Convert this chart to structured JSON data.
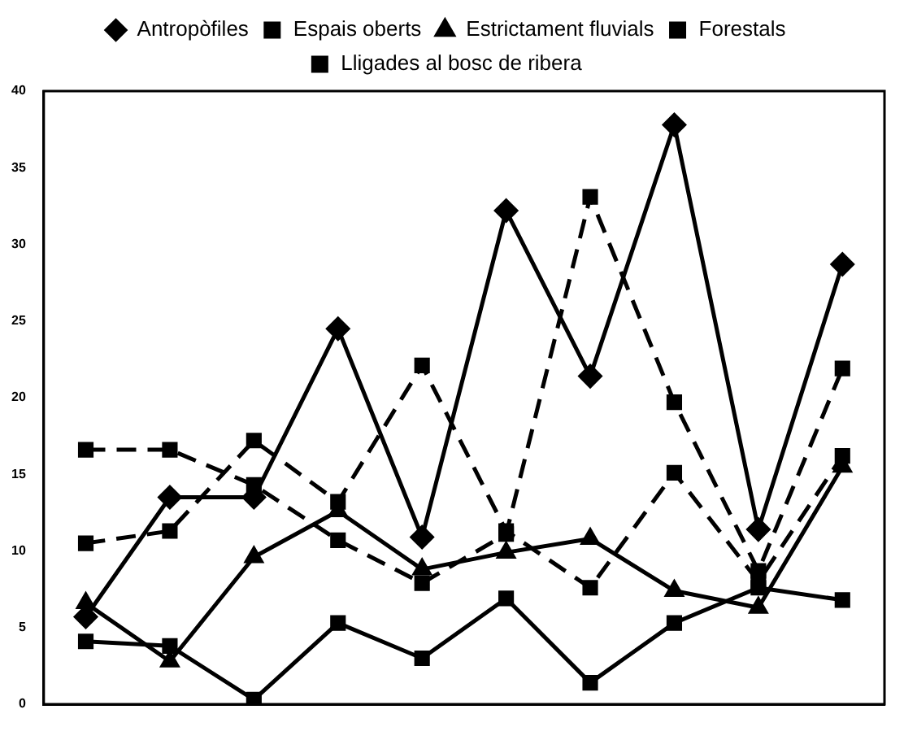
{
  "chart_data": {
    "type": "line",
    "categories": [
      null,
      null,
      null,
      null,
      null,
      null,
      null,
      null,
      null,
      null
    ],
    "series": [
      {
        "name": "Antropòfiles",
        "color": "#000000",
        "marker": "diamond",
        "line_style": "solid",
        "values": [
          5.7,
          13.5,
          13.5,
          24.5,
          10.9,
          32.2,
          21.4,
          37.8,
          11.4,
          28.7
        ]
      },
      {
        "name": "Espais oberts",
        "color": "#000000",
        "marker": "square",
        "line_style": "solid",
        "values": [
          4.1,
          3.8,
          0.3,
          5.3,
          3.0,
          6.9,
          1.4,
          5.3,
          7.6,
          6.8
        ]
      },
      {
        "name": "Estrictament fluvials",
        "color": "#000000",
        "marker": "triangle",
        "line_style": "solid",
        "values": [
          6.6,
          2.8,
          9.6,
          12.6,
          8.8,
          9.9,
          10.8,
          7.4,
          6.3,
          15.5
        ]
      },
      {
        "name": "Forestals",
        "color": "#000000",
        "marker": "square",
        "line_style": "dashed",
        "values": [
          16.6,
          16.6,
          14.3,
          10.7,
          7.9,
          11.1,
          33.1,
          19.7,
          8.7,
          21.9
        ]
      },
      {
        "name": "Lligades al bosc de ribera",
        "color": "#000000",
        "marker": "square",
        "line_style": "dashed",
        "values": [
          10.5,
          11.3,
          17.2,
          13.2,
          22.1,
          11.3,
          7.6,
          15.1,
          8.0,
          16.2
        ]
      }
    ],
    "ylim": [
      0,
      40
    ],
    "yticks": [
      0,
      5,
      10,
      15,
      20,
      25,
      30,
      35,
      40
    ],
    "grid": false,
    "legend": "top",
    "tick_labels": "y"
  }
}
